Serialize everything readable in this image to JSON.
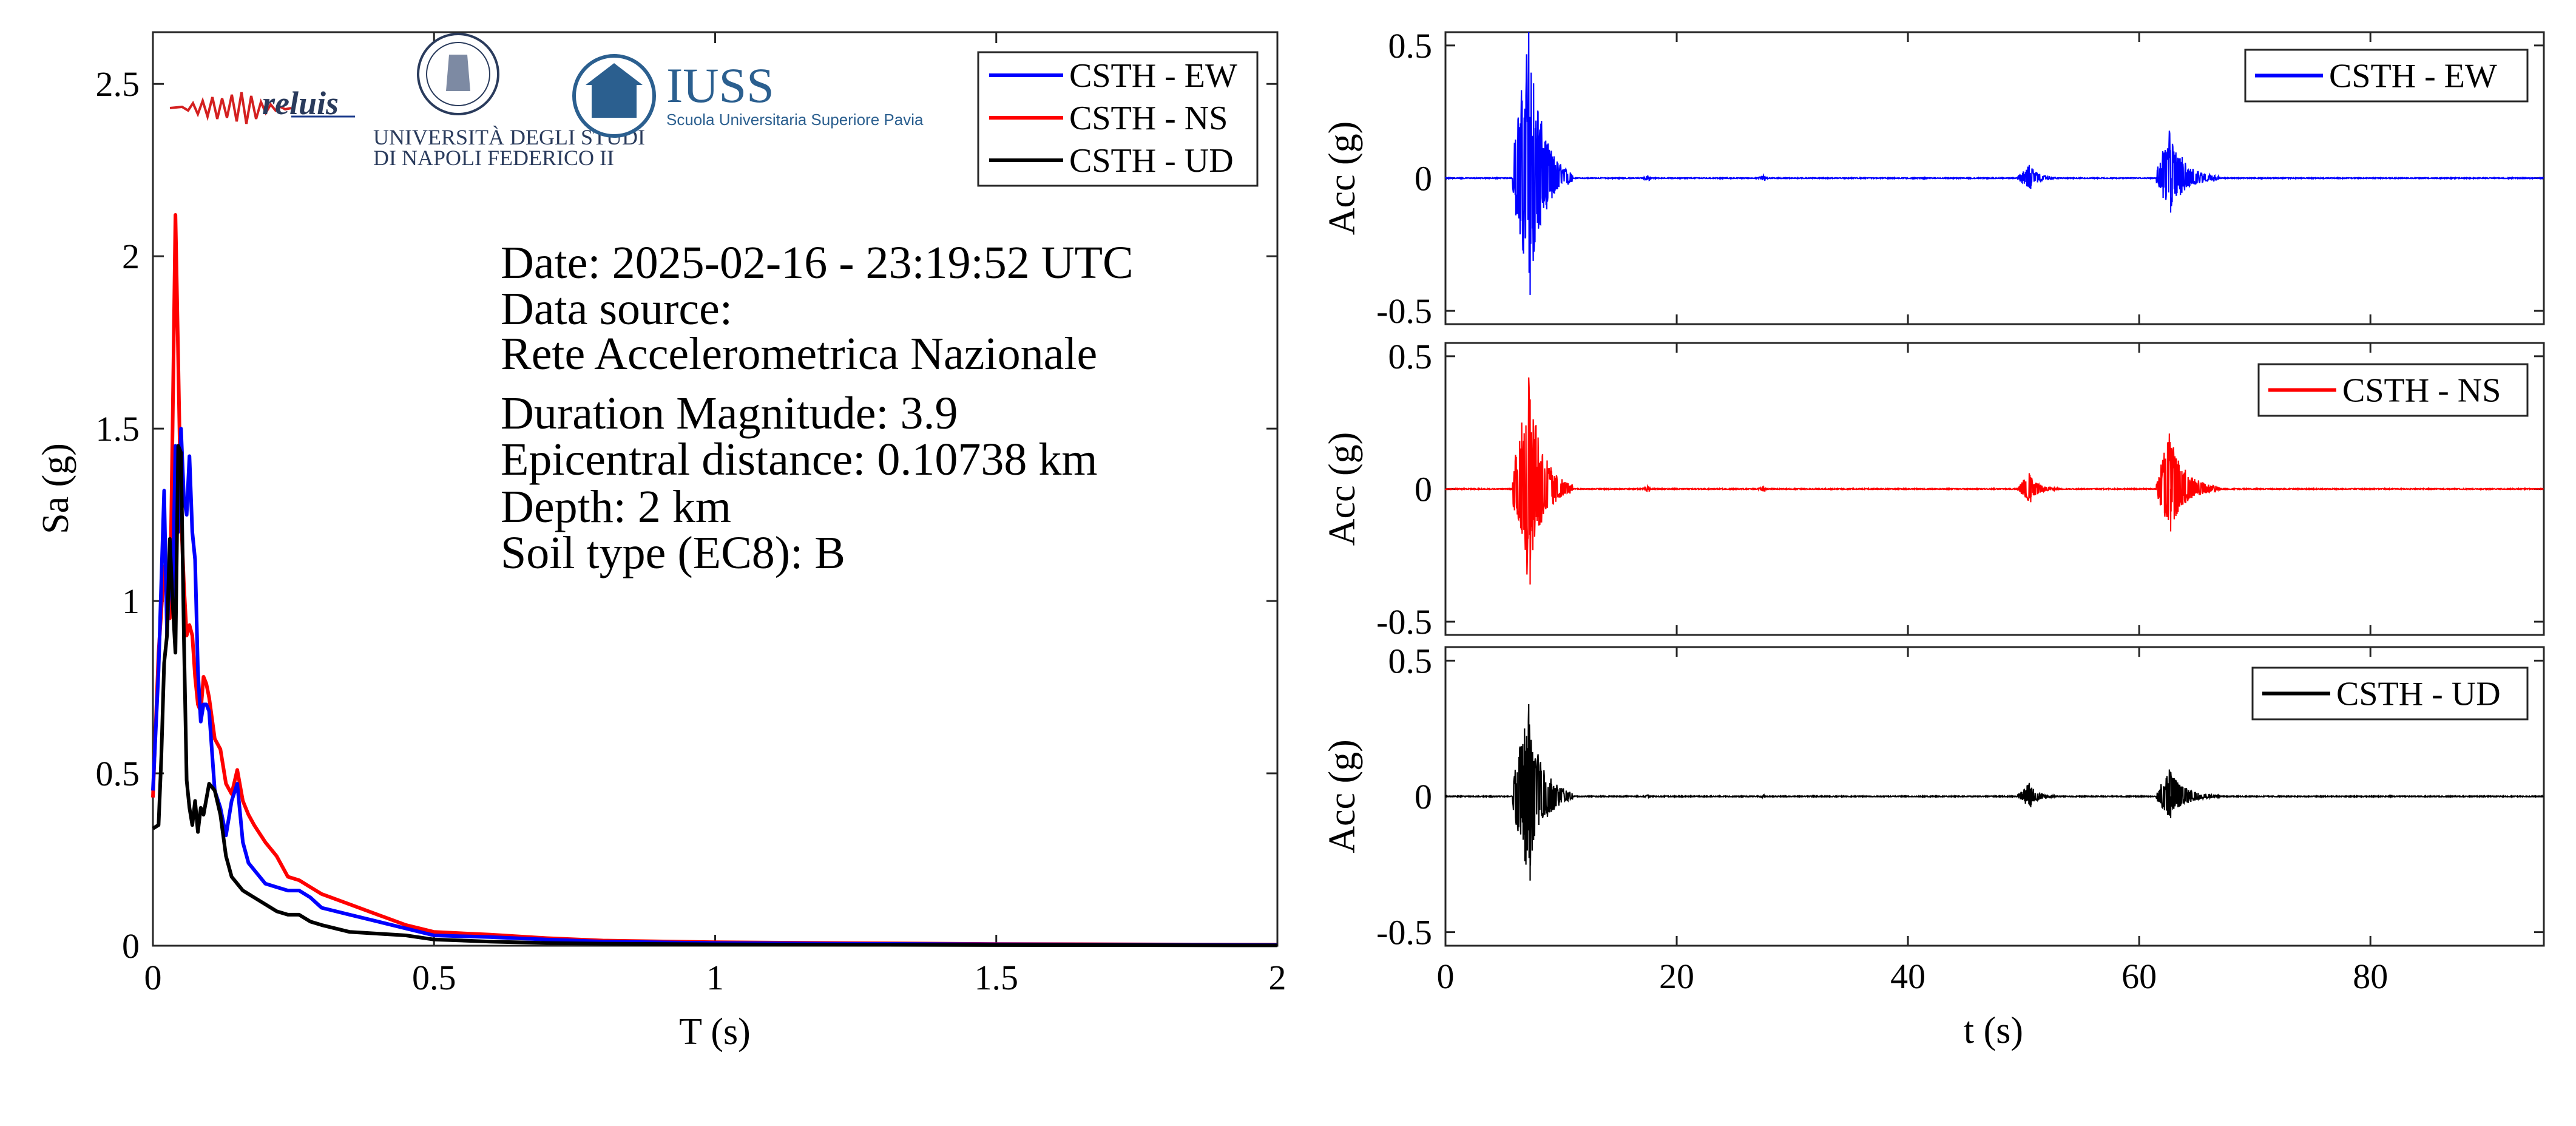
{
  "colors": {
    "ew": "#0000ff",
    "ns": "#ff0000",
    "ud": "#000000",
    "axis": "#262626",
    "logo_blue": "#2b5f8f"
  },
  "logos": {
    "reluis_text": "reluis",
    "unina_line1": "UNIVERSITÀ DEGLI STUDI",
    "unina_line2": "DI NAPOLI FEDERICO II",
    "iuss_title": "IUSS",
    "iuss_subtitle": "Scuola Universitaria Superiore Pavia"
  },
  "info": {
    "date": "Date: 2025-02-16 - 23:19:52 UTC",
    "source_label": "Data source:",
    "source_name": "Rete Accelerometrica Nazionale",
    "magnitude": "Duration Magnitude: 3.9",
    "distance": "Epicentral distance: 0.10738 km",
    "depth": "Depth: 2 km",
    "soil": "Soil type (EC8): B"
  },
  "chart_data": [
    {
      "type": "line",
      "xlabel": "T (s)",
      "ylabel": "Sa (g)",
      "xlim": [
        0,
        2
      ],
      "ylim": [
        0,
        2.65
      ],
      "xticks": [
        0,
        0.5,
        1,
        1.5,
        2
      ],
      "xtick_labels": [
        "0",
        "0.5",
        "1",
        "1.5",
        "2"
      ],
      "yticks": [
        0,
        0.5,
        1,
        1.5,
        2,
        2.5
      ],
      "ytick_labels": [
        "0",
        "0.5",
        "1",
        "1.5",
        "2",
        "2.5"
      ],
      "legend_position": "top-right",
      "series": [
        {
          "name": "CSTH - EW",
          "color": "#0000ff",
          "x": [
            0,
            0.01,
            0.02,
            0.025,
            0.03,
            0.035,
            0.04,
            0.045,
            0.05,
            0.055,
            0.06,
            0.065,
            0.07,
            0.075,
            0.08,
            0.085,
            0.09,
            0.095,
            0.1,
            0.11,
            0.12,
            0.13,
            0.14,
            0.15,
            0.16,
            0.17,
            0.18,
            0.2,
            0.22,
            0.24,
            0.26,
            0.28,
            0.3,
            0.35,
            0.4,
            0.45,
            0.5,
            0.6,
            0.7,
            0.8,
            1.0,
            1.2,
            1.5,
            2.0
          ],
          "y": [
            0.45,
            0.8,
            1.32,
            0.9,
            1.1,
            1.0,
            1.45,
            1.2,
            1.5,
            1.3,
            1.25,
            1.42,
            1.2,
            1.12,
            0.8,
            0.65,
            0.7,
            0.7,
            0.68,
            0.45,
            0.4,
            0.32,
            0.42,
            0.47,
            0.3,
            0.24,
            0.22,
            0.18,
            0.17,
            0.16,
            0.16,
            0.14,
            0.11,
            0.09,
            0.07,
            0.05,
            0.03,
            0.025,
            0.018,
            0.012,
            0.008,
            0.006,
            0.004,
            0.002
          ]
        },
        {
          "name": "CSTH - NS",
          "color": "#ff0000",
          "x": [
            0,
            0.01,
            0.02,
            0.025,
            0.03,
            0.035,
            0.04,
            0.045,
            0.05,
            0.055,
            0.06,
            0.065,
            0.07,
            0.075,
            0.08,
            0.085,
            0.09,
            0.095,
            0.1,
            0.11,
            0.12,
            0.13,
            0.14,
            0.15,
            0.16,
            0.17,
            0.18,
            0.2,
            0.22,
            0.24,
            0.26,
            0.28,
            0.3,
            0.35,
            0.4,
            0.45,
            0.5,
            0.6,
            0.7,
            0.8,
            1.0,
            1.2,
            1.5,
            2.0
          ],
          "y": [
            0.43,
            0.85,
            1.1,
            1.0,
            0.95,
            1.5,
            2.12,
            1.7,
            1.25,
            1.05,
            0.9,
            0.93,
            0.9,
            0.78,
            0.7,
            0.68,
            0.78,
            0.76,
            0.72,
            0.6,
            0.57,
            0.47,
            0.44,
            0.51,
            0.42,
            0.38,
            0.35,
            0.3,
            0.26,
            0.2,
            0.19,
            0.17,
            0.15,
            0.12,
            0.09,
            0.06,
            0.04,
            0.032,
            0.022,
            0.015,
            0.01,
            0.008,
            0.005,
            0.003
          ]
        },
        {
          "name": "CSTH - UD",
          "color": "#000000",
          "x": [
            0,
            0.01,
            0.015,
            0.02,
            0.025,
            0.03,
            0.035,
            0.04,
            0.045,
            0.05,
            0.055,
            0.06,
            0.065,
            0.07,
            0.075,
            0.08,
            0.085,
            0.09,
            0.1,
            0.11,
            0.12,
            0.13,
            0.14,
            0.15,
            0.16,
            0.17,
            0.18,
            0.2,
            0.22,
            0.24,
            0.26,
            0.28,
            0.3,
            0.35,
            0.4,
            0.45,
            0.5,
            0.6,
            0.7,
            0.8,
            1.0,
            1.2,
            1.5,
            2.0
          ],
          "y": [
            0.34,
            0.35,
            0.55,
            0.82,
            0.9,
            1.18,
            1.0,
            0.85,
            1.45,
            1.43,
            0.9,
            0.48,
            0.4,
            0.35,
            0.42,
            0.33,
            0.4,
            0.38,
            0.47,
            0.45,
            0.38,
            0.26,
            0.2,
            0.18,
            0.16,
            0.15,
            0.14,
            0.12,
            0.1,
            0.09,
            0.09,
            0.07,
            0.06,
            0.04,
            0.035,
            0.03,
            0.018,
            0.012,
            0.008,
            0.006,
            0.004,
            0.003,
            0.002,
            0.001
          ]
        }
      ]
    },
    {
      "type": "line",
      "xlabel": "",
      "ylabel": "Acc (g)",
      "xlim": [
        0,
        95
      ],
      "ylim": [
        -0.55,
        0.55
      ],
      "yticks": [
        -0.5,
        0,
        0.5
      ],
      "ytick_labels": [
        "-0.5",
        "0",
        "0.5"
      ],
      "legend_position": "top-right",
      "series": [
        {
          "name": "CSTH - EW",
          "color": "#0000ff",
          "bursts": [
            {
              "t0": 5.8,
              "t1": 11,
              "peak": 0.55,
              "neg": -0.44,
              "peak_t": 7.2
            },
            {
              "t0": 17,
              "t1": 18,
              "peak": 0.01,
              "neg": -0.01,
              "peak_t": 17.5
            },
            {
              "t0": 27,
              "t1": 28,
              "peak": 0.01,
              "neg": -0.01,
              "peak_t": 27.5
            },
            {
              "t0": 49.5,
              "t1": 53,
              "peak": 0.05,
              "neg": -0.04,
              "peak_t": 50.5
            },
            {
              "t0": 61.5,
              "t1": 67,
              "peak": 0.18,
              "neg": -0.13,
              "peak_t": 62.6
            }
          ]
        }
      ]
    },
    {
      "type": "line",
      "xlabel": "",
      "ylabel": "Acc (g)",
      "xlim": [
        0,
        95
      ],
      "ylim": [
        -0.55,
        0.55
      ],
      "yticks": [
        -0.5,
        0,
        0.5
      ],
      "ytick_labels": [
        "-0.5",
        "0",
        "0.5"
      ],
      "legend_position": "top-right",
      "series": [
        {
          "name": "CSTH - NS",
          "color": "#ff0000",
          "bursts": [
            {
              "t0": 5.8,
              "t1": 11,
              "peak": 0.42,
              "neg": -0.36,
              "peak_t": 7.2
            },
            {
              "t0": 17,
              "t1": 18,
              "peak": 0.01,
              "neg": -0.01,
              "peak_t": 17.5
            },
            {
              "t0": 27,
              "t1": 28,
              "peak": 0.01,
              "neg": -0.01,
              "peak_t": 27.5
            },
            {
              "t0": 49.5,
              "t1": 53,
              "peak": 0.06,
              "neg": -0.05,
              "peak_t": 50.5
            },
            {
              "t0": 61.5,
              "t1": 67,
              "peak": 0.21,
              "neg": -0.16,
              "peak_t": 62.6
            }
          ]
        }
      ]
    },
    {
      "type": "line",
      "xlabel": "t (s)",
      "ylabel": "Acc (g)",
      "xlim": [
        0,
        95
      ],
      "ylim": [
        -0.55,
        0.55
      ],
      "xticks": [
        0,
        20,
        40,
        60,
        80
      ],
      "xtick_labels": [
        "0",
        "20",
        "40",
        "60",
        "80"
      ],
      "yticks": [
        -0.5,
        0,
        0.5
      ],
      "ytick_labels": [
        "-0.5",
        "0",
        "0.5"
      ],
      "legend_position": "top-right",
      "series": [
        {
          "name": "CSTH - UD",
          "color": "#000000",
          "bursts": [
            {
              "t0": 5.8,
              "t1": 11,
              "peak": 0.34,
              "neg": -0.31,
              "peak_t": 7.2
            },
            {
              "t0": 17,
              "t1": 18,
              "peak": 0.005,
              "neg": -0.005,
              "peak_t": 17.5
            },
            {
              "t0": 27,
              "t1": 28,
              "peak": 0.005,
              "neg": -0.005,
              "peak_t": 27.5
            },
            {
              "t0": 49.5,
              "t1": 53,
              "peak": 0.05,
              "neg": -0.04,
              "peak_t": 50.5
            },
            {
              "t0": 61.5,
              "t1": 67,
              "peak": 0.1,
              "neg": -0.08,
              "peak_t": 62.6
            }
          ]
        }
      ]
    }
  ]
}
